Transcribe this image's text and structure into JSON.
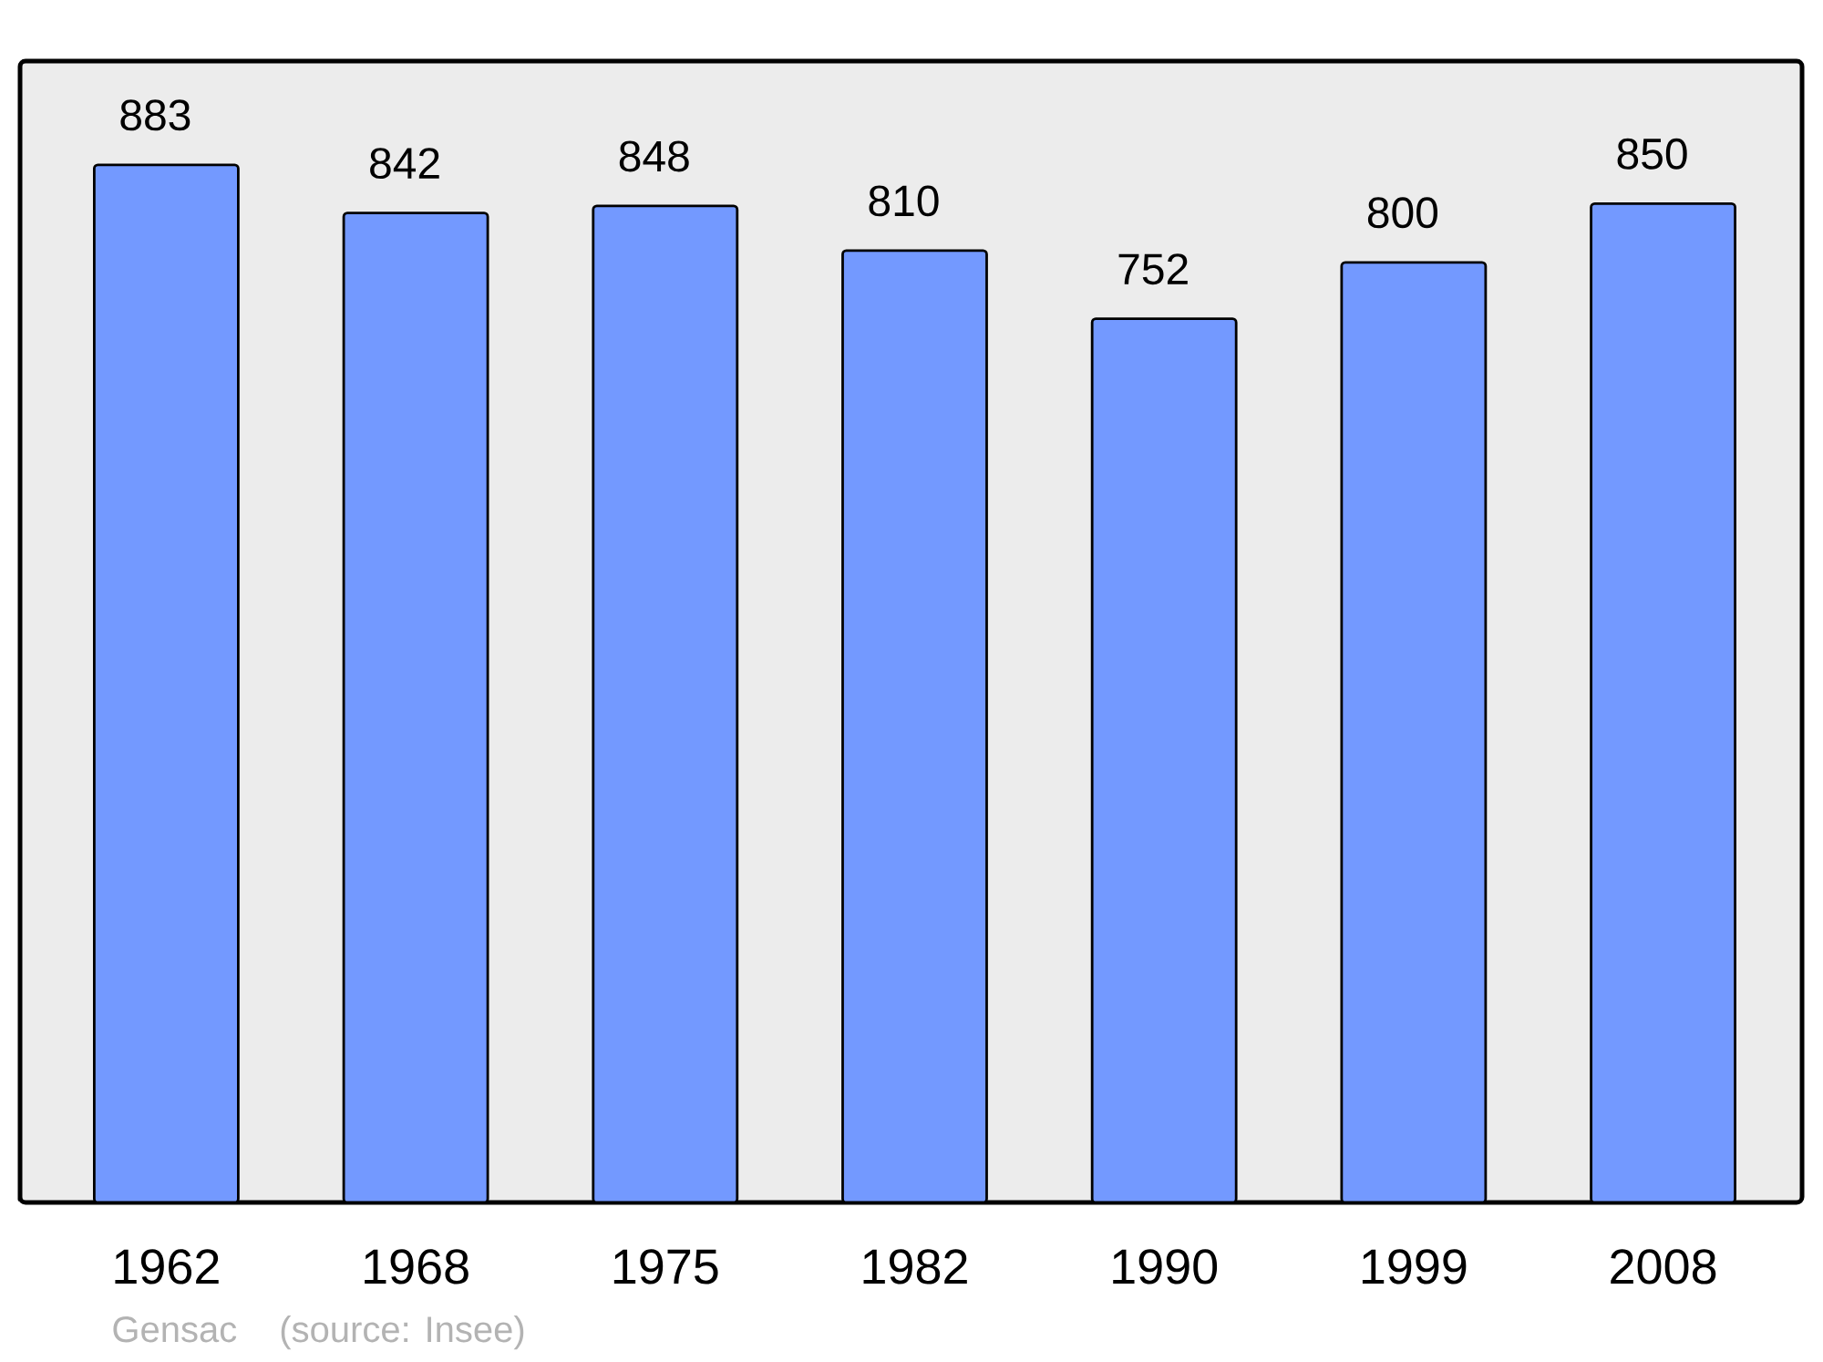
{
  "chart_data": {
    "type": "bar",
    "categories": [
      "1962",
      "1968",
      "1975",
      "1982",
      "1990",
      "1999",
      "2008"
    ],
    "values": [
      883,
      842,
      848,
      810,
      752,
      800,
      850
    ],
    "color": "#7399ff",
    "data_labels": true,
    "tick_labels": "x",
    "annotations": [
      "Gensac",
      "(source: Insee)"
    ]
  }
}
